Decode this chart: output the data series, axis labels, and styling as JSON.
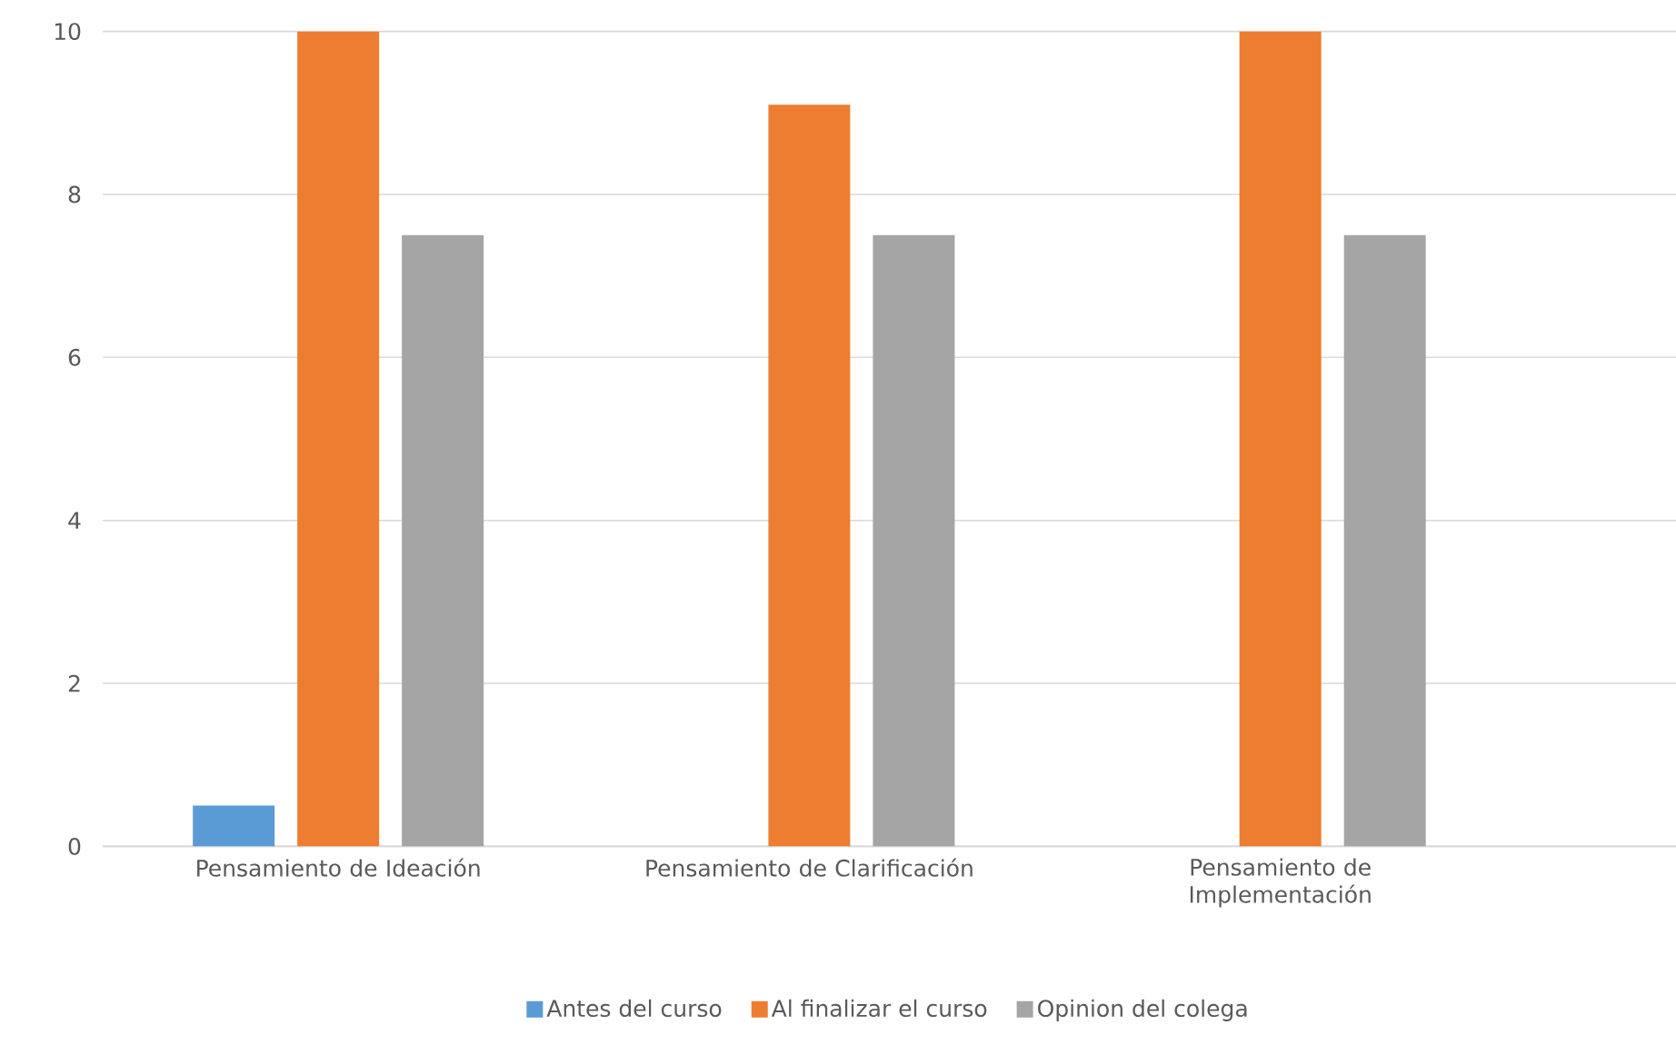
{
  "chart_data": {
    "type": "bar",
    "categories": [
      "Pensamiento de Ideación",
      "Pensamiento de Clarificación",
      "Pensamiento de Implementación"
    ],
    "series": [
      {
        "name": "Antes del curso",
        "color": "#5b9bd5",
        "values": [
          0.5,
          0,
          0
        ]
      },
      {
        "name": "Al finalizar el curso",
        "color": "#ed7d31",
        "values": [
          10,
          9.1,
          10
        ]
      },
      {
        "name": "Opinion del colega",
        "color": "#a5a5a5",
        "values": [
          7.5,
          7.5,
          7.5
        ]
      }
    ],
    "ylim": [
      0,
      10
    ],
    "yticks": [
      0,
      2,
      4,
      6,
      8,
      10
    ],
    "grid": "y",
    "legend": "bottom"
  }
}
